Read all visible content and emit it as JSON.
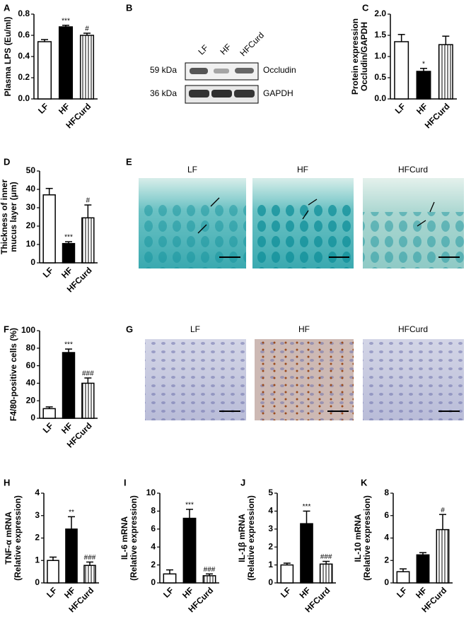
{
  "chart_data": [
    {
      "type": "bar",
      "panel": "A",
      "ylabel": [
        "Plasma LPS (Eu/ml)"
      ],
      "categories": [
        "LF",
        "HF",
        "HFCurd"
      ],
      "values": [
        0.54,
        0.68,
        0.6
      ],
      "errors": [
        0.02,
        0.015,
        0.02
      ],
      "annotations": [
        null,
        "***",
        "#"
      ],
      "colors": [
        "#ffffff",
        "#000000",
        "#ffffff"
      ],
      "hatch": [
        false,
        false,
        true
      ],
      "ylim": [
        0,
        0.8
      ],
      "yticks": [
        {
          "value": 0,
          "label": "0.0"
        },
        0.2,
        0.4,
        0.6,
        0.8
      ]
    },
    {
      "type": "bar",
      "panel": "C",
      "ylabel": [
        "Protein expression",
        "Occludin/GAPDH"
      ],
      "categories": [
        "LF",
        "HF",
        "HFCurd"
      ],
      "values": [
        1.35,
        0.65,
        1.28
      ],
      "errors": [
        0.17,
        0.07,
        0.2
      ],
      "annotations": [
        null,
        "*",
        null
      ],
      "colors": [
        "#ffffff",
        "#000000",
        "#ffffff"
      ],
      "hatch": [
        false,
        false,
        true
      ],
      "ylim": [
        0,
        2
      ],
      "yticks": [
        {
          "value": 0,
          "label": "0.0"
        },
        0.5,
        {
          "value": 1,
          "label": "1.0"
        },
        1.5,
        {
          "value": 2,
          "label": "2.0"
        }
      ]
    },
    {
      "type": "bar",
      "panel": "D",
      "ylabel": [
        "Thickness of inner",
        "mucus layer (μm)"
      ],
      "categories": [
        "LF",
        "HF",
        "HFCurd"
      ],
      "values": [
        37,
        10.5,
        24.5
      ],
      "errors": [
        3.5,
        1,
        7
      ],
      "annotations": [
        null,
        "***",
        "#"
      ],
      "colors": [
        "#ffffff",
        "#000000",
        "#ffffff"
      ],
      "hatch": [
        false,
        false,
        true
      ],
      "ylim": [
        0,
        50
      ],
      "yticks": [
        0,
        10,
        20,
        30,
        40,
        50
      ]
    },
    {
      "type": "bar",
      "panel": "F",
      "ylabel": [
        "F4/80-positive cells (%)"
      ],
      "categories": [
        "LF",
        "HF",
        "HFCurd"
      ],
      "values": [
        11,
        75,
        40
      ],
      "errors": [
        2,
        4,
        6
      ],
      "annotations": [
        null,
        "***",
        "###"
      ],
      "colors": [
        "#ffffff",
        "#000000",
        "#ffffff"
      ],
      "hatch": [
        false,
        false,
        true
      ],
      "ylim": [
        0,
        100
      ],
      "yticks": [
        0,
        20,
        40,
        60,
        80,
        100
      ]
    },
    {
      "type": "bar",
      "panel": "H",
      "ylabel": [
        "TNF-α mRNA",
        "(Relative expression)"
      ],
      "categories": [
        "LF",
        "HF",
        "HFCurd"
      ],
      "values": [
        1.0,
        2.4,
        0.78
      ],
      "errors": [
        0.15,
        0.55,
        0.15
      ],
      "annotations": [
        null,
        "**",
        "###"
      ],
      "colors": [
        "#ffffff",
        "#000000",
        "#ffffff"
      ],
      "hatch": [
        false,
        false,
        true
      ],
      "ylim": [
        0,
        4
      ],
      "yticks": [
        0,
        1,
        2,
        3,
        4
      ]
    },
    {
      "type": "bar",
      "panel": "I",
      "ylabel": [
        "IL-6 mRNA",
        "(Relative expression)"
      ],
      "categories": [
        "LF",
        "HF",
        "HFCurd"
      ],
      "values": [
        1.0,
        7.2,
        0.8
      ],
      "errors": [
        0.45,
        1.0,
        0.2
      ],
      "annotations": [
        null,
        "***",
        "###"
      ],
      "colors": [
        "#ffffff",
        "#000000",
        "#ffffff"
      ],
      "hatch": [
        false,
        false,
        true
      ],
      "ylim": [
        0,
        10
      ],
      "yticks": [
        0,
        2,
        4,
        6,
        8,
        10
      ]
    },
    {
      "type": "bar",
      "panel": "J",
      "ylabel": [
        "IL-1β mRNA",
        "(Relative expression)"
      ],
      "categories": [
        "LF",
        "HF",
        "HFCurd"
      ],
      "values": [
        1.0,
        3.3,
        1.05
      ],
      "errors": [
        0.1,
        0.7,
        0.15
      ],
      "annotations": [
        null,
        "***",
        "###"
      ],
      "colors": [
        "#ffffff",
        "#000000",
        "#ffffff"
      ],
      "hatch": [
        false,
        false,
        true
      ],
      "ylim": [
        0,
        5
      ],
      "yticks": [
        0,
        1,
        2,
        3,
        4,
        5
      ]
    },
    {
      "type": "bar",
      "panel": "K",
      "ylabel": [
        "IL-10 mRNA",
        "(Relative expression)"
      ],
      "categories": [
        "LF",
        "HF",
        "HFCurd"
      ],
      "values": [
        1.0,
        2.5,
        4.75
      ],
      "errors": [
        0.25,
        0.2,
        1.35
      ],
      "annotations": [
        null,
        null,
        "#"
      ],
      "colors": [
        "#ffffff",
        "#000000",
        "#ffffff"
      ],
      "hatch": [
        false,
        false,
        true
      ],
      "ylim": [
        0,
        8
      ],
      "yticks": [
        0,
        2,
        4,
        6,
        8
      ]
    }
  ],
  "blot": {
    "panel": "B",
    "lanes": [
      "LF",
      "HF",
      "HFCurd"
    ],
    "rows": [
      {
        "size": "59 kDa",
        "protein": "Occludin"
      },
      {
        "size": "36 kDa",
        "protein": "GAPDH"
      }
    ]
  },
  "images": [
    {
      "panel": "E",
      "labels": [
        "LF",
        "HF",
        "HFCurd"
      ]
    },
    {
      "panel": "G",
      "labels": [
        "LF",
        "HF",
        "HFCurd"
      ]
    }
  ]
}
